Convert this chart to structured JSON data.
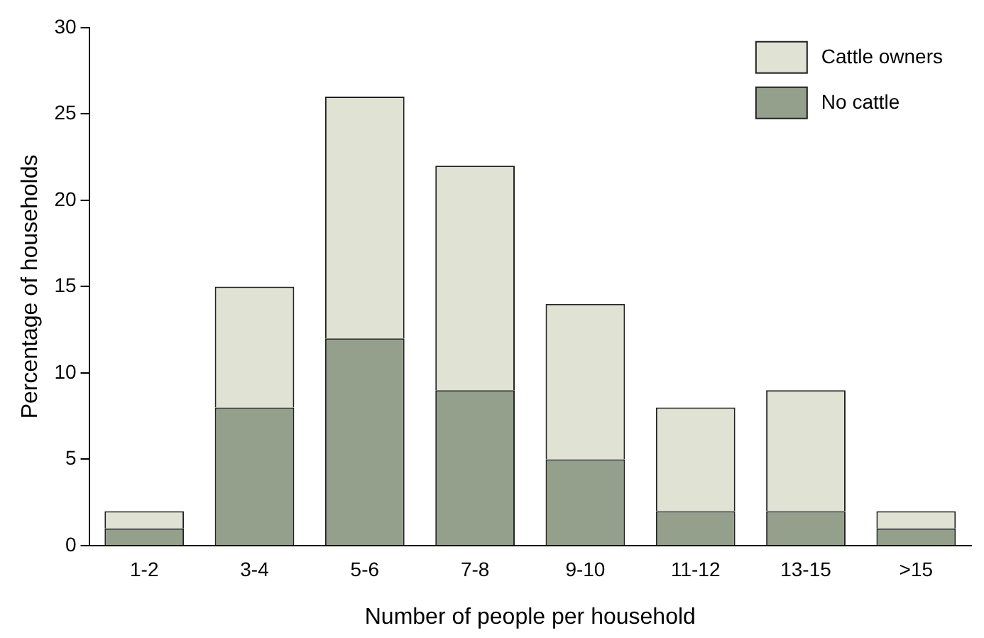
{
  "chart_data": {
    "type": "bar",
    "xlabel": "Number of people per household",
    "ylabel": "Percentage of households",
    "categories": [
      "1-2",
      "3-4",
      "5-6",
      "7-8",
      "9-10",
      "11-12",
      "13-15",
      ">15"
    ],
    "series": [
      {
        "name": "No cattle",
        "color": "#95a08c",
        "values": [
          1,
          8,
          12,
          9,
          5,
          2,
          2,
          1
        ]
      },
      {
        "name": "Cattle owners",
        "color": "#e0e2d4",
        "values": [
          1,
          7,
          14,
          13,
          9,
          6,
          7,
          1
        ]
      }
    ],
    "stacked": true,
    "ylim": [
      0,
      30
    ],
    "yticks": [
      0,
      5,
      10,
      15,
      20,
      25,
      30
    ],
    "grid": false,
    "legend": "top right"
  }
}
